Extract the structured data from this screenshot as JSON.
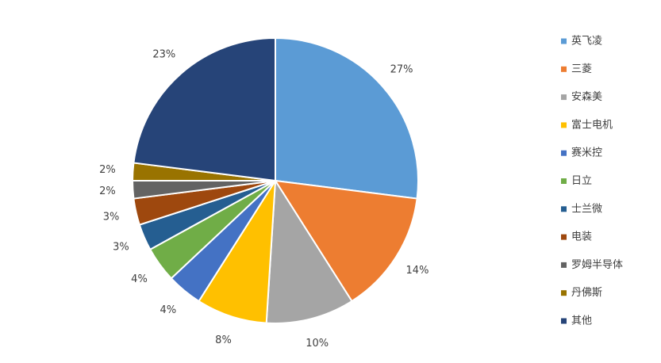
{
  "chart_data": {
    "type": "pie",
    "categories": [
      "英飞凌",
      "三菱",
      "安森美",
      "富士电机",
      "赛米控",
      "日立",
      "士兰微",
      "电装",
      "罗姆半导体",
      "丹佛斯",
      "其他"
    ],
    "values": [
      27,
      14,
      10,
      8,
      4,
      4,
      3,
      3,
      2,
      2,
      23
    ],
    "value_labels": [
      "27%",
      "14%",
      "10%",
      "8%",
      "4%",
      "4%",
      "3%",
      "3%",
      "2%",
      "2%",
      "23%"
    ],
    "colors": [
      "#5B9BD5",
      "#ED7D31",
      "#A5A5A5",
      "#FFC000",
      "#4472C4",
      "#70AD47",
      "#255E91",
      "#9E480E",
      "#636363",
      "#997300",
      "#264478"
    ],
    "legend": "right"
  }
}
